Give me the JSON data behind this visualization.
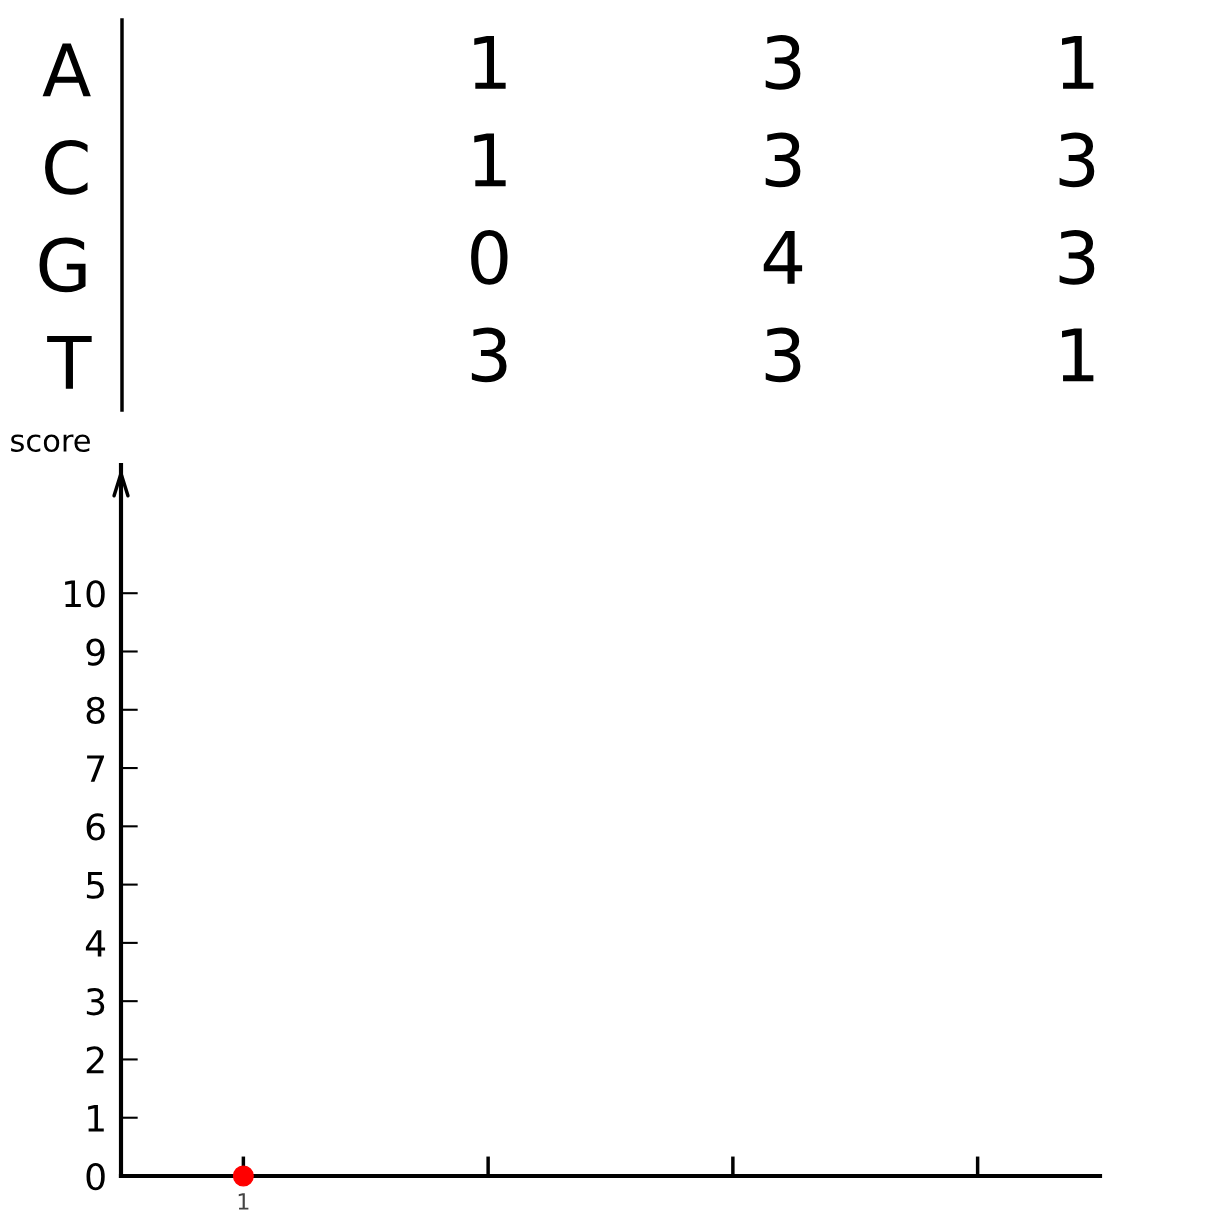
{
  "chart_data": [
    {
      "type": "heatmap",
      "categories": [
        null,
        null,
        null
      ],
      "y_categories": [
        "A",
        "C",
        "G",
        "T"
      ],
      "cells": [
        [
          1,
          3,
          1
        ],
        [
          1,
          3,
          3
        ],
        [
          0,
          4,
          3
        ],
        [
          3,
          3,
          1
        ]
      ],
      "data_labels": true,
      "tick_labels": "y"
    },
    {
      "type": "scatter",
      "ylabel": "score",
      "categories": [
        "1",
        null,
        null,
        null
      ],
      "values": [
        0,
        null,
        null,
        null
      ],
      "color": "#ff0000",
      "marker": "circle",
      "ylim": [
        0,
        12.2
      ],
      "yticks": [
        0,
        1,
        2,
        3,
        4,
        5,
        6,
        7,
        8,
        9,
        10
      ],
      "grid": false
    }
  ]
}
